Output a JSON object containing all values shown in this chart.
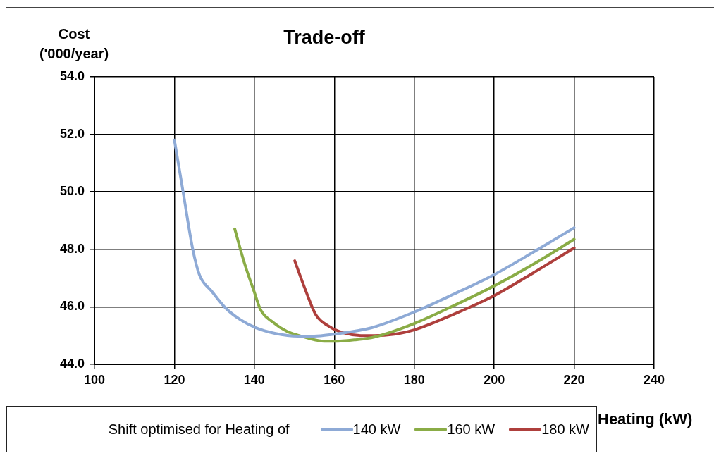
{
  "chart_data": {
    "type": "line",
    "title": "Trade-off",
    "xlabel": "Heating (kW)",
    "ylabel": "Cost ('000/year)",
    "legend_title": "Shift optimised for Heating of",
    "legend": "bottom",
    "grid": true,
    "marker": "none",
    "line_style": "solid",
    "xlim": [
      100,
      240
    ],
    "xticks": [
      100,
      120,
      140,
      160,
      180,
      200,
      220,
      240
    ],
    "ylim": [
      44,
      54
    ],
    "yticks": [
      {
        "value": 44,
        "label": "44.0"
      },
      {
        "value": 46,
        "label": "46.0"
      },
      {
        "value": 48,
        "label": "48.0"
      },
      {
        "value": 50,
        "label": "50.0"
      },
      {
        "value": 52,
        "label": "52.0"
      },
      {
        "value": 54,
        "label": "54.0"
      }
    ],
    "series": [
      {
        "name": "140 kW",
        "color": "#8eaad6",
        "x": [
          120,
          122.2,
          124.6,
          126.3,
          129.3,
          132.8,
          136.3,
          140.4,
          145.1,
          150.9,
          155,
          160,
          165,
          170,
          180,
          190,
          200,
          210,
          220
        ],
        "values": [
          51.8,
          49.98,
          48.0,
          47.1,
          46.55,
          45.96,
          45.57,
          45.27,
          45.08,
          44.98,
          44.98,
          45.05,
          45.15,
          45.3,
          45.82,
          46.45,
          47.12,
          47.92,
          48.75
        ]
      },
      {
        "name": "160 kW",
        "color": "#8aac46",
        "x": [
          135.1,
          137.5,
          139.9,
          141.6,
          144.6,
          148.1,
          152.2,
          156.9,
          160,
          165,
          170,
          180,
          190,
          200,
          210,
          220
        ],
        "values": [
          48.71,
          47.53,
          46.55,
          45.89,
          45.47,
          45.15,
          44.96,
          44.81,
          44.8,
          44.85,
          44.95,
          45.42,
          46.05,
          46.73,
          47.5,
          48.35
        ]
      },
      {
        "name": "180 kW",
        "color": "#ae3f3c",
        "x": [
          150.1,
          152.7,
          155.4,
          158.7,
          162.2,
          167.5,
          170,
          175,
          180,
          190,
          200,
          210,
          220
        ],
        "values": [
          47.6,
          46.62,
          45.72,
          45.32,
          45.1,
          45.0,
          45.0,
          45.05,
          45.2,
          45.75,
          46.39,
          47.2,
          48.05
        ]
      }
    ]
  }
}
